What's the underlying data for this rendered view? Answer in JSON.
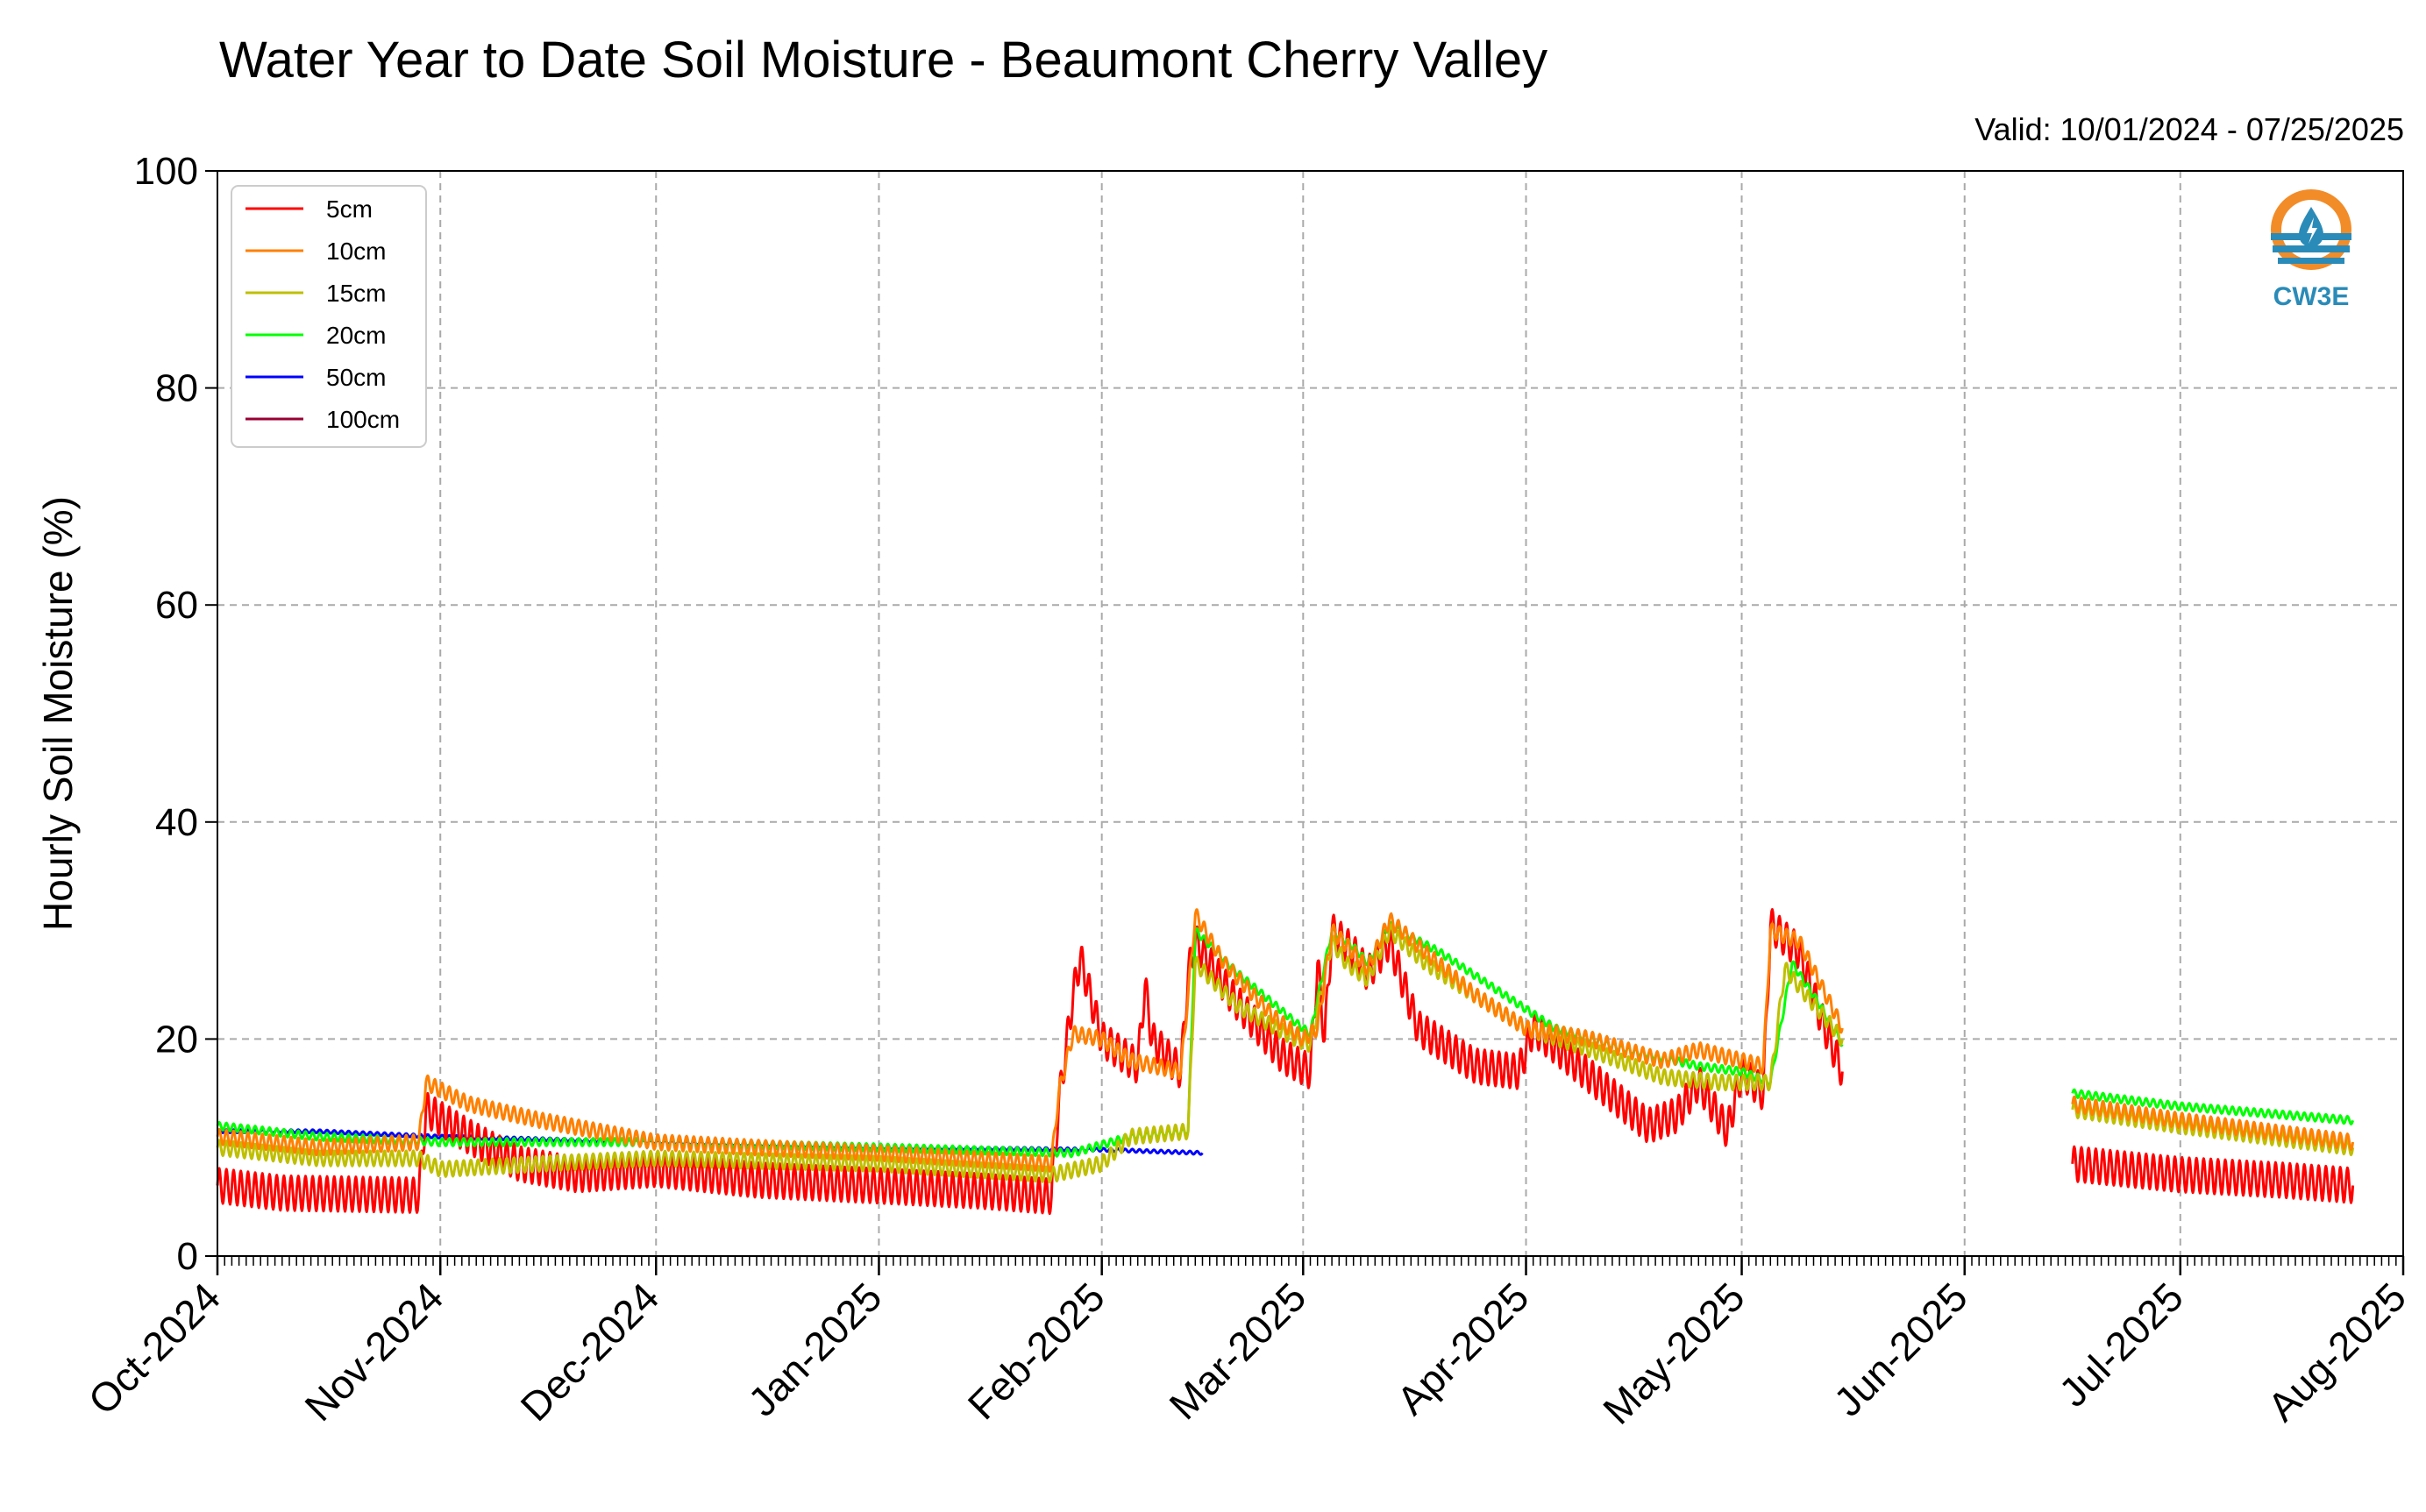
{
  "chart_data": {
    "type": "line",
    "title": "Water Year to Date Soil Moisture - Beaumont Cherry Valley",
    "subtitle": "Valid: 10/01/2024 - 07/25/2025",
    "xlabel": "",
    "ylabel": "Hourly Soil Moisture (%)",
    "xlim": [
      "2024-10-01",
      "2025-08-01"
    ],
    "ylim": [
      0,
      100
    ],
    "yticks": [
      0,
      20,
      40,
      60,
      80,
      100
    ],
    "xticks": [
      {
        "date": "2024-10-01",
        "label": "Oct-2024"
      },
      {
        "date": "2024-11-01",
        "label": "Nov-2024"
      },
      {
        "date": "2024-12-01",
        "label": "Dec-2024"
      },
      {
        "date": "2025-01-01",
        "label": "Jan-2025"
      },
      {
        "date": "2025-02-01",
        "label": "Feb-2025"
      },
      {
        "date": "2025-03-01",
        "label": "Mar-2025"
      },
      {
        "date": "2025-04-01",
        "label": "Apr-2025"
      },
      {
        "date": "2025-05-01",
        "label": "May-2025"
      },
      {
        "date": "2025-06-01",
        "label": "Jun-2025"
      },
      {
        "date": "2025-07-01",
        "label": "Jul-2025"
      },
      {
        "date": "2025-08-01",
        "label": "Aug-2025"
      }
    ],
    "grid": true,
    "legend_position": "top-left",
    "series": [
      {
        "name": "5cm",
        "color": "#ff0000",
        "diurnal_amplitude": 1.6,
        "segments": [
          [
            [
              "2024-10-01",
              6.5
            ],
            [
              "2024-10-10",
              5.8
            ],
            [
              "2024-10-20",
              5.7
            ],
            [
              "2024-10-29",
              5.6
            ],
            [
              "2024-10-30",
              13.5
            ],
            [
              "2024-11-05",
              11.0
            ],
            [
              "2024-11-12",
              8.5
            ],
            [
              "2024-11-20",
              7.5
            ],
            [
              "2024-12-01",
              8.0
            ],
            [
              "2024-12-15",
              7.0
            ],
            [
              "2024-12-31",
              6.5
            ],
            [
              "2025-01-15",
              6.0
            ],
            [
              "2025-01-25",
              5.5
            ],
            [
              "2025-01-26",
              14.0
            ],
            [
              "2025-01-28",
              24.0
            ],
            [
              "2025-01-29",
              27.5
            ],
            [
              "2025-02-01",
              20.0
            ],
            [
              "2025-02-06",
              17.5
            ],
            [
              "2025-02-07",
              25.0
            ],
            [
              "2025-02-08",
              20.0
            ],
            [
              "2025-02-12",
              17.0
            ],
            [
              "2025-02-13",
              26.0
            ],
            [
              "2025-02-14",
              29.0
            ],
            [
              "2025-02-19",
              24.0
            ],
            [
              "2025-02-26",
              18.5
            ],
            [
              "2025-03-02",
              17.0
            ],
            [
              "2025-03-03",
              27.0
            ],
            [
              "2025-03-04",
              20.0
            ],
            [
              "2025-03-05",
              30.0
            ],
            [
              "2025-03-08",
              28.0
            ],
            [
              "2025-03-10",
              26.0
            ],
            [
              "2025-03-13",
              29.0
            ],
            [
              "2025-03-15",
              25.0
            ],
            [
              "2025-03-17",
              21.0
            ],
            [
              "2025-03-25",
              17.5
            ],
            [
              "2025-03-31",
              17.0
            ],
            [
              "2025-04-02",
              21.0
            ],
            [
              "2025-04-10",
              16.5
            ],
            [
              "2025-04-18",
              12.0
            ],
            [
              "2025-04-22",
              13.0
            ],
            [
              "2025-04-25",
              16.0
            ],
            [
              "2025-04-29",
              11.5
            ],
            [
              "2025-05-01",
              17.0
            ],
            [
              "2025-05-04",
              15.0
            ],
            [
              "2025-05-05",
              30.5
            ],
            [
              "2025-05-09",
              28.0
            ],
            [
              "2025-05-12",
              22.0
            ],
            [
              "2025-05-15",
              17.0
            ]
          ],
          [
            [
              "2025-06-16",
              8.5
            ],
            [
              "2025-07-01",
              7.5
            ],
            [
              "2025-07-15",
              7.0
            ],
            [
              "2025-07-25",
              6.5
            ]
          ]
        ]
      },
      {
        "name": "10cm",
        "color": "#ff8000",
        "diurnal_amplitude": 0.7,
        "segments": [
          [
            [
              "2024-10-01",
              11.0
            ],
            [
              "2024-10-15",
              10.0
            ],
            [
              "2024-10-29",
              10.5
            ],
            [
              "2024-10-30",
              16.0
            ],
            [
              "2024-11-05",
              14.0
            ],
            [
              "2024-11-15",
              12.5
            ],
            [
              "2024-12-01",
              10.5
            ],
            [
              "2024-12-15",
              10.0
            ],
            [
              "2025-01-01",
              9.5
            ],
            [
              "2025-01-25",
              8.5
            ],
            [
              "2025-01-26",
              15.0
            ],
            [
              "2025-01-28",
              20.5
            ],
            [
              "2025-02-01",
              20.0
            ],
            [
              "2025-02-05",
              18.0
            ],
            [
              "2025-02-12",
              17.0
            ],
            [
              "2025-02-13",
              24.0
            ],
            [
              "2025-02-14",
              31.5
            ],
            [
              "2025-02-18",
              27.0
            ],
            [
              "2025-02-25",
              22.0
            ],
            [
              "2025-03-01",
              20.0
            ],
            [
              "2025-03-03",
              21.0
            ],
            [
              "2025-03-05",
              30.0
            ],
            [
              "2025-03-08",
              28.0
            ],
            [
              "2025-03-10",
              26.5
            ],
            [
              "2025-03-13",
              31.0
            ],
            [
              "2025-03-18",
              28.0
            ],
            [
              "2025-03-25",
              24.0
            ],
            [
              "2025-04-01",
              21.0
            ],
            [
              "2025-04-10",
              20.0
            ],
            [
              "2025-04-20",
              18.0
            ],
            [
              "2025-04-25",
              19.0
            ],
            [
              "2025-05-01",
              18.0
            ],
            [
              "2025-05-04",
              17.5
            ],
            [
              "2025-05-05",
              30.0
            ],
            [
              "2025-05-09",
              29.0
            ],
            [
              "2025-05-15",
              21.0
            ]
          ],
          [
            [
              "2025-06-16",
              14.0
            ],
            [
              "2025-07-01",
              12.5
            ],
            [
              "2025-07-25",
              10.5
            ]
          ]
        ]
      },
      {
        "name": "15cm",
        "color": "#bfbf00",
        "diurnal_amplitude": 0.7,
        "segments": [
          [
            [
              "2024-10-01",
              10.0
            ],
            [
              "2024-10-15",
              9.0
            ],
            [
              "2024-10-29",
              9.0
            ],
            [
              "2024-11-01",
              8.0
            ],
            [
              "2024-11-15",
              8.5
            ],
            [
              "2024-12-01",
              9.0
            ],
            [
              "2025-01-01",
              8.5
            ],
            [
              "2025-01-25",
              7.5
            ],
            [
              "2025-02-01",
              8.5
            ],
            [
              "2025-02-05",
              11.0
            ],
            [
              "2025-02-13",
              11.5
            ],
            [
              "2025-02-14",
              27.0
            ],
            [
              "2025-02-20",
              23.0
            ],
            [
              "2025-02-28",
              20.0
            ],
            [
              "2025-03-02",
              19.5
            ],
            [
              "2025-03-05",
              29.0
            ],
            [
              "2025-03-07",
              27.0
            ],
            [
              "2025-03-10",
              25.5
            ],
            [
              "2025-03-13",
              30.0
            ],
            [
              "2025-03-18",
              27.0
            ],
            [
              "2025-03-25",
              24.0
            ],
            [
              "2025-04-01",
              21.0
            ],
            [
              "2025-04-10",
              19.0
            ],
            [
              "2025-04-20",
              16.5
            ],
            [
              "2025-04-28",
              16.0
            ],
            [
              "2025-05-05",
              16.0
            ],
            [
              "2025-05-07",
              26.5
            ],
            [
              "2025-05-10",
              24.0
            ],
            [
              "2025-05-15",
              20.0
            ]
          ],
          [
            [
              "2025-06-16",
              13.5
            ],
            [
              "2025-07-01",
              12.0
            ],
            [
              "2025-07-25",
              10.0
            ]
          ]
        ]
      },
      {
        "name": "20cm",
        "color": "#00ff00",
        "diurnal_amplitude": 0.35,
        "segments": [
          [
            [
              "2024-10-01",
              12.0
            ],
            [
              "2024-10-15",
              11.0
            ],
            [
              "2024-11-01",
              10.5
            ],
            [
              "2024-12-01",
              10.5
            ],
            [
              "2025-01-01",
              10.0
            ],
            [
              "2025-01-28",
              9.5
            ],
            [
              "2025-02-05",
              11.0
            ],
            [
              "2025-02-13",
              11.5
            ],
            [
              "2025-02-14",
              30.0
            ],
            [
              "2025-02-20",
              26.0
            ],
            [
              "2025-02-28",
              21.5
            ],
            [
              "2025-03-02",
              20.5
            ],
            [
              "2025-03-05",
              30.0
            ],
            [
              "2025-03-08",
              28.5
            ],
            [
              "2025-03-10",
              27.0
            ],
            [
              "2025-03-13",
              30.5
            ],
            [
              "2025-03-20",
              28.0
            ],
            [
              "2025-03-28",
              24.5
            ],
            [
              "2025-04-05",
              21.0
            ],
            [
              "2025-04-15",
              19.0
            ],
            [
              "2025-04-25",
              17.5
            ],
            [
              "2025-05-01",
              17.0
            ],
            [
              "2025-05-05",
              16.0
            ],
            [
              "2025-05-08",
              27.0
            ],
            [
              "2025-05-12",
              23.0
            ],
            [
              "2025-05-15",
              19.5
            ]
          ],
          [
            [
              "2025-06-16",
              15.0
            ],
            [
              "2025-07-01",
              13.8
            ],
            [
              "2025-07-25",
              12.5
            ]
          ]
        ]
      },
      {
        "name": "50cm",
        "color": "#0000ff",
        "diurnal_amplitude": 0.15,
        "segments": [
          [
            [
              "2024-10-01",
              11.5
            ],
            [
              "2024-10-15",
              11.5
            ],
            [
              "2024-11-01",
              11.0
            ],
            [
              "2024-12-01",
              10.5
            ],
            [
              "2025-01-01",
              10.0
            ],
            [
              "2025-02-01",
              9.8
            ],
            [
              "2025-02-15",
              9.5
            ]
          ]
        ]
      },
      {
        "name": "100cm",
        "color": "#990033",
        "diurnal_amplitude": 0,
        "segments": []
      }
    ]
  },
  "logo": {
    "text": "CW3E"
  }
}
